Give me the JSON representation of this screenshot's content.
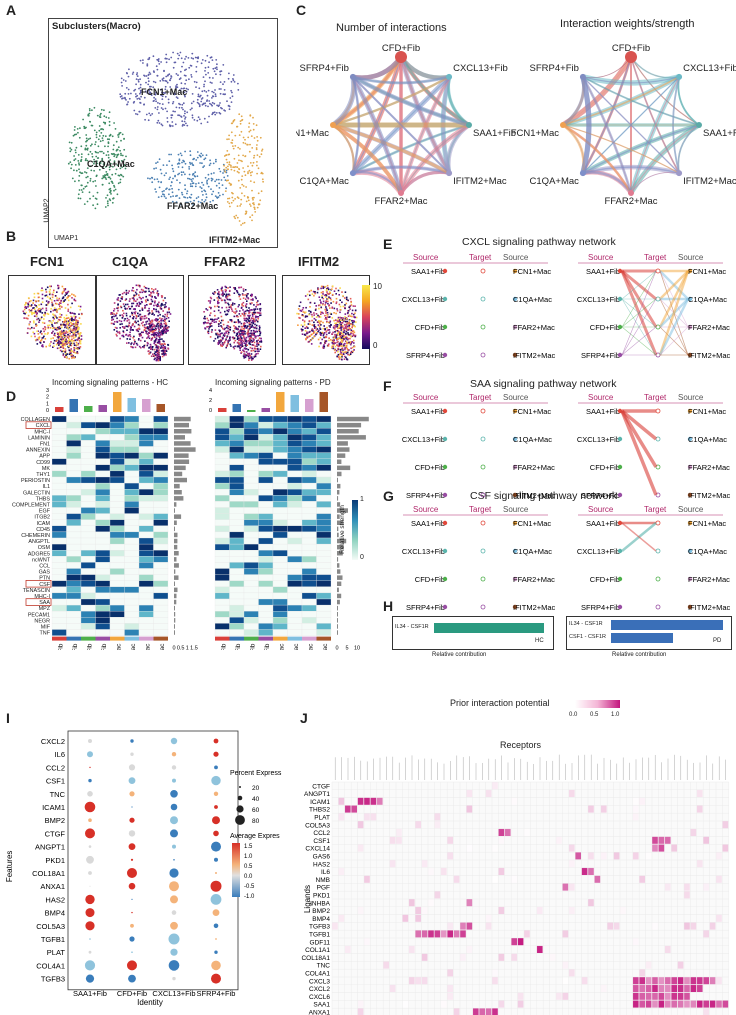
{
  "panels": {
    "a": {
      "letter": "A",
      "title": "Subclusters(Macro)",
      "clusters": [
        "FCN1+Mac",
        "C1QA+Mac",
        "FFAR2+Mac",
        "IFITM2+Mac"
      ],
      "xlabel": "UMAP1",
      "ylabel": "UMAP2",
      "colors": {
        "FCN1+Mac": "#5e5fa8",
        "C1QA+Mac": "#3c8a62",
        "FFAR2+Mac": "#4a7fb2",
        "IFITM2+Mac": "#e2a84a"
      }
    },
    "b": {
      "letter": "B",
      "genes": [
        "FCN1",
        "C1QA",
        "FFAR2",
        "IFITM2"
      ],
      "scale_max": "10",
      "scale_min": "0"
    },
    "c": {
      "letter": "C",
      "titles": [
        "Number of interactions",
        "Interaction weights/strength"
      ],
      "nodes": [
        "CFD+Fib",
        "CXCL13+Fib",
        "SAA1+Fib",
        "IFITM2+Mac",
        "FFAR2+Mac",
        "C1QA+Mac",
        "FCN1+Mac",
        "SFRP4+Fib"
      ]
    },
    "d": {
      "letter": "D",
      "titles": [
        "Incoming signaling patterns - HC",
        "Incoming signaling patterns - PD"
      ],
      "pathways": [
        "COLLAGEN",
        "CXCL",
        "MHC-I",
        "LAMININ",
        "FN1",
        "ANNEXIN",
        "APP",
        "CD99",
        "MK",
        "THY1",
        "PERIOSTIN",
        "IL1",
        "GALECTIN",
        "THBS",
        "COMPLEMENT",
        "EGF",
        "ITGB2",
        "ICAM",
        "CD45",
        "CHEMERIN",
        "ANGPTL",
        "OSM",
        "ADGRE5",
        "ncWNT",
        "CCL",
        "GAS",
        "PTN",
        "CSF",
        "TENASCIN",
        "MHC-I",
        "SAA",
        "MPZ",
        "PECAM1",
        "NEGR",
        "MIF",
        "TNF"
      ],
      "cells": [
        "SAA1+Fib",
        "CXCL13+Fib",
        "CFD+Fib",
        "SFRP4+Fib",
        "FCN1+Mac",
        "C1QA+Mac",
        "FFAR2+Mac",
        "IFITM2+Mac"
      ],
      "legend": "Relative strength",
      "legend_max": "1",
      "legend_min": "0",
      "hc_axis": [
        "0",
        "1",
        "2",
        "3"
      ],
      "pd_axis": [
        "0",
        "2",
        "4"
      ],
      "hc_bar_axis": [
        "0",
        "0.5",
        "1",
        "1.5"
      ],
      "pd_bar_axis": [
        "0",
        "5",
        "10"
      ]
    },
    "e": {
      "letter": "E",
      "title": "CXCL signaling pathway network"
    },
    "f": {
      "letter": "F",
      "title": "SAA signaling pathway network"
    },
    "g": {
      "letter": "G",
      "title": "CSF signaling pathway network"
    },
    "net_labels": {
      "source": "Source",
      "target": "Target",
      "left": [
        "SAA1+Fib",
        "CXCL13+Fib",
        "CFD+Fib",
        "SFRP4+Fib"
      ],
      "right": [
        "FCN1+Mac",
        "C1QA+Mac",
        "FFAR2+Mac",
        "IFITM2+Mac"
      ]
    },
    "h": {
      "letter": "H",
      "hc": {
        "pairs": [
          "IL34 - CSF1R"
        ],
        "values": [
          1.0
        ],
        "tag": "HC"
      },
      "pd": {
        "pairs": [
          "IL34 - CSF1R",
          "CSF1 - CSF1R"
        ],
        "values": [
          1.0,
          0.55
        ],
        "tag": "PD"
      },
      "xlabel": "Relative contribution",
      "colors": {
        "hc": "#2a9a80",
        "pd": "#3a6fb8"
      }
    },
    "i": {
      "letter": "I",
      "features": [
        "CXCL2",
        "IL6",
        "CCL2",
        "CSF1",
        "TNC",
        "ICAM1",
        "BMP2",
        "CTGF",
        "ANGPT1",
        "PKD1",
        "COL18A1",
        "ANXA1",
        "HAS2",
        "BMP4",
        "COL5A3",
        "TGFB1",
        "PLAT",
        "COL4A1",
        "TGFB3"
      ],
      "identity": [
        "SAA1+Fib",
        "CFD+Fib",
        "CXCL13+Fib",
        "SFRP4+Fib"
      ],
      "xlabel": "Identity",
      "ylabel": "Features",
      "size_title": "Percent Express",
      "sizes": [
        "20",
        "40",
        "60",
        "80"
      ],
      "color_title": "Average Expres",
      "color_ticks": [
        "1.5",
        "1.0",
        "0.5",
        "0.0",
        "-0.5",
        "-1.0"
      ]
    },
    "j": {
      "letter": "J",
      "legend_title": "Prior interaction potential",
      "legend_ticks": [
        "0.0",
        "0.5",
        "1.0"
      ],
      "xlabel": "Receptors",
      "ylabel": "Ligands",
      "ligands": [
        "CTGF",
        "ANGPT1",
        "ICAM1",
        "THBS2",
        "PLAT",
        "COL5A3",
        "CCL2",
        "CSF1",
        "CXCL14",
        "GAS6",
        "HAS2",
        "IL6",
        "NMB",
        "PGF",
        "PKD1",
        "INHBA",
        "BMP2",
        "BMP4",
        "TGFB3",
        "TGFB1",
        "GDF11",
        "COL1A1",
        "COL18A1",
        "TNC",
        "COL4A1",
        "CXCL3",
        "CXCL2",
        "CXCL6",
        "SAA1",
        "ANXA1"
      ]
    }
  }
}
